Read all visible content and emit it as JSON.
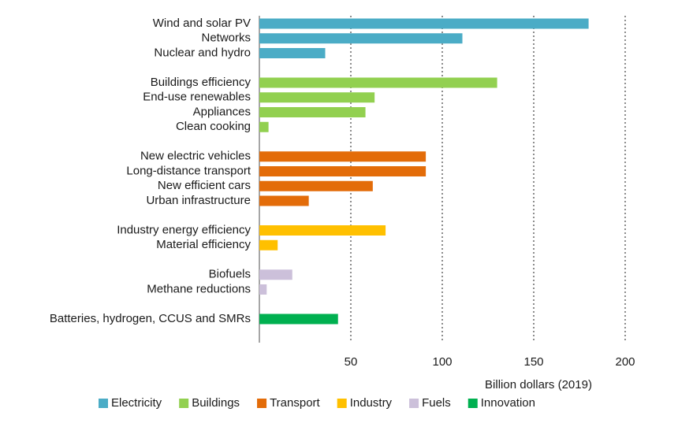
{
  "chart_data": {
    "type": "bar",
    "orientation": "horizontal",
    "x_label": "Billion dollars (2019)",
    "xlim": [
      0,
      200
    ],
    "xticks": [
      50,
      100,
      150,
      200
    ],
    "grid": true,
    "legend": "bottom",
    "series": [
      {
        "name": "Electricity",
        "color": "#4bacc6",
        "categories": [
          "Wind and solar PV",
          "Networks",
          "Nuclear and hydro"
        ],
        "values": [
          180,
          111,
          36
        ]
      },
      {
        "name": "Buildings",
        "color": "#92d050",
        "categories": [
          "Buildings efficiency",
          "End-use renewables",
          "Appliances",
          "Clean cooking"
        ],
        "values": [
          130,
          63,
          58,
          5
        ]
      },
      {
        "name": "Transport",
        "color": "#e36c09",
        "categories": [
          "New electric vehicles",
          "Long-distance transport",
          "New efficient cars",
          "Urban infrastructure"
        ],
        "values": [
          91,
          91,
          62,
          27
        ]
      },
      {
        "name": "Industry",
        "color": "#ffc000",
        "categories": [
          "Industry energy efficiency",
          "Material efficiency"
        ],
        "values": [
          69,
          10
        ]
      },
      {
        "name": "Fuels",
        "color": "#ccc0da",
        "categories": [
          "Biofuels",
          "Methane reductions"
        ],
        "values": [
          18,
          4
        ]
      },
      {
        "name": "Innovation",
        "color": "#00b050",
        "categories": [
          "Batteries, hydrogen, CCUS and SMRs"
        ],
        "values": [
          43
        ]
      }
    ]
  }
}
